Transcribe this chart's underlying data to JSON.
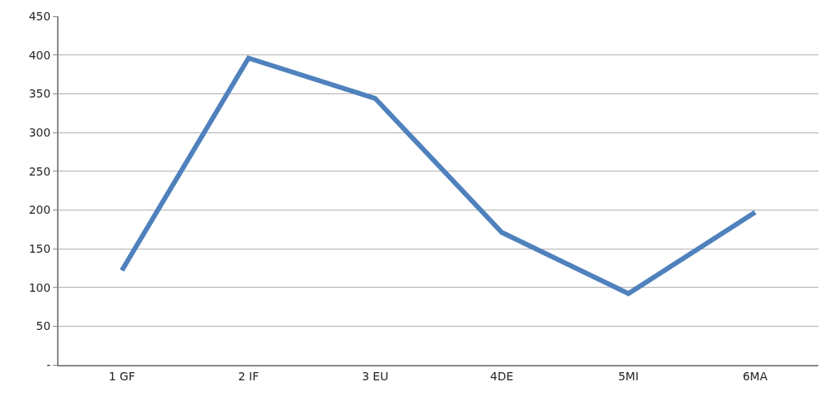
{
  "chart_data": {
    "type": "line",
    "categories": [
      "1 GF",
      "2 IF",
      "3 EU",
      "4DE",
      "5MI",
      "6MA"
    ],
    "series": [
      {
        "color": "#4f81bd",
        "values": [
          122,
          396,
          344,
          171,
          92,
          197
        ]
      }
    ],
    "ylim": [
      0,
      450
    ],
    "yticks": [
      {
        "value": 0,
        "label": "-"
      },
      50,
      100,
      150,
      200,
      250,
      300,
      350,
      400,
      450
    ],
    "grid": "y",
    "legend": false,
    "marker": "none",
    "line_style": "solid"
  }
}
